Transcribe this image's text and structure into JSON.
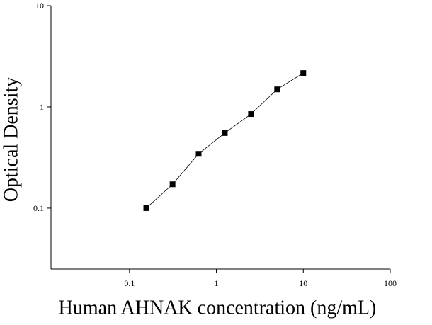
{
  "chart_data": {
    "type": "scatter",
    "x_label": "Human AHNAK concentration (ng/mL)",
    "y_label": "Optical Density",
    "x": [
      0.156,
      0.313,
      0.625,
      1.25,
      2.5,
      5,
      10
    ],
    "series": [
      {
        "color": "#000000",
        "values": [
          0.1,
          0.172,
          0.344,
          0.552,
          0.85,
          1.49,
          2.16
        ]
      }
    ],
    "xlim": [
      0.0125,
      100
    ],
    "ylim": [
      0.025,
      10
    ],
    "xticks": [
      0.1,
      1,
      10,
      100
    ],
    "yticks": [
      0.1,
      1,
      10
    ],
    "log_x": true,
    "log_y": true,
    "fit_line": true
  }
}
